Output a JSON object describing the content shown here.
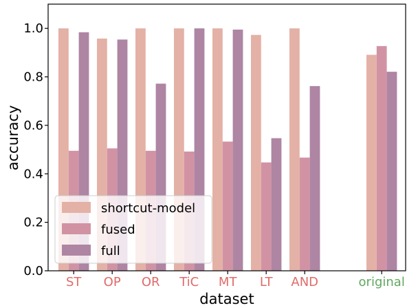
{
  "chart_data": {
    "type": "bar",
    "xlabel": "dataset",
    "ylabel": "accuracy",
    "ylim": [
      0,
      1.1
    ],
    "yticks": [
      "0.0",
      "0.2",
      "0.4",
      "0.6",
      "0.8",
      "1.0"
    ],
    "grid": false,
    "legend_placement": "lower-left",
    "categories": [
      {
        "label": "ST",
        "color": "#e06a6a"
      },
      {
        "label": "OP",
        "color": "#e06a6a"
      },
      {
        "label": "OR",
        "color": "#e06a6a"
      },
      {
        "label": "TiC",
        "color": "#e06a6a"
      },
      {
        "label": "MT",
        "color": "#e06a6a"
      },
      {
        "label": "LT",
        "color": "#e06a6a"
      },
      {
        "label": "AND",
        "color": "#e06a6a"
      },
      {
        "label": "",
        "color": "#ffffff"
      },
      {
        "label": "original",
        "color": "#5fa85f"
      }
    ],
    "series": [
      {
        "name": "shortcut-model",
        "color": "#e4b1a6",
        "values": [
          1.0,
          0.958,
          1.0,
          1.0,
          1.0,
          0.973,
          1.0,
          null,
          0.891
        ]
      },
      {
        "name": "fused",
        "color": "#d193a4",
        "values": [
          0.495,
          0.505,
          0.495,
          0.492,
          0.533,
          0.447,
          0.467,
          null,
          0.927
        ]
      },
      {
        "name": "full",
        "color": "#ae85a3",
        "values": [
          0.984,
          0.954,
          0.772,
          1.0,
          0.995,
          0.547,
          0.762,
          null,
          0.821
        ]
      }
    ]
  }
}
